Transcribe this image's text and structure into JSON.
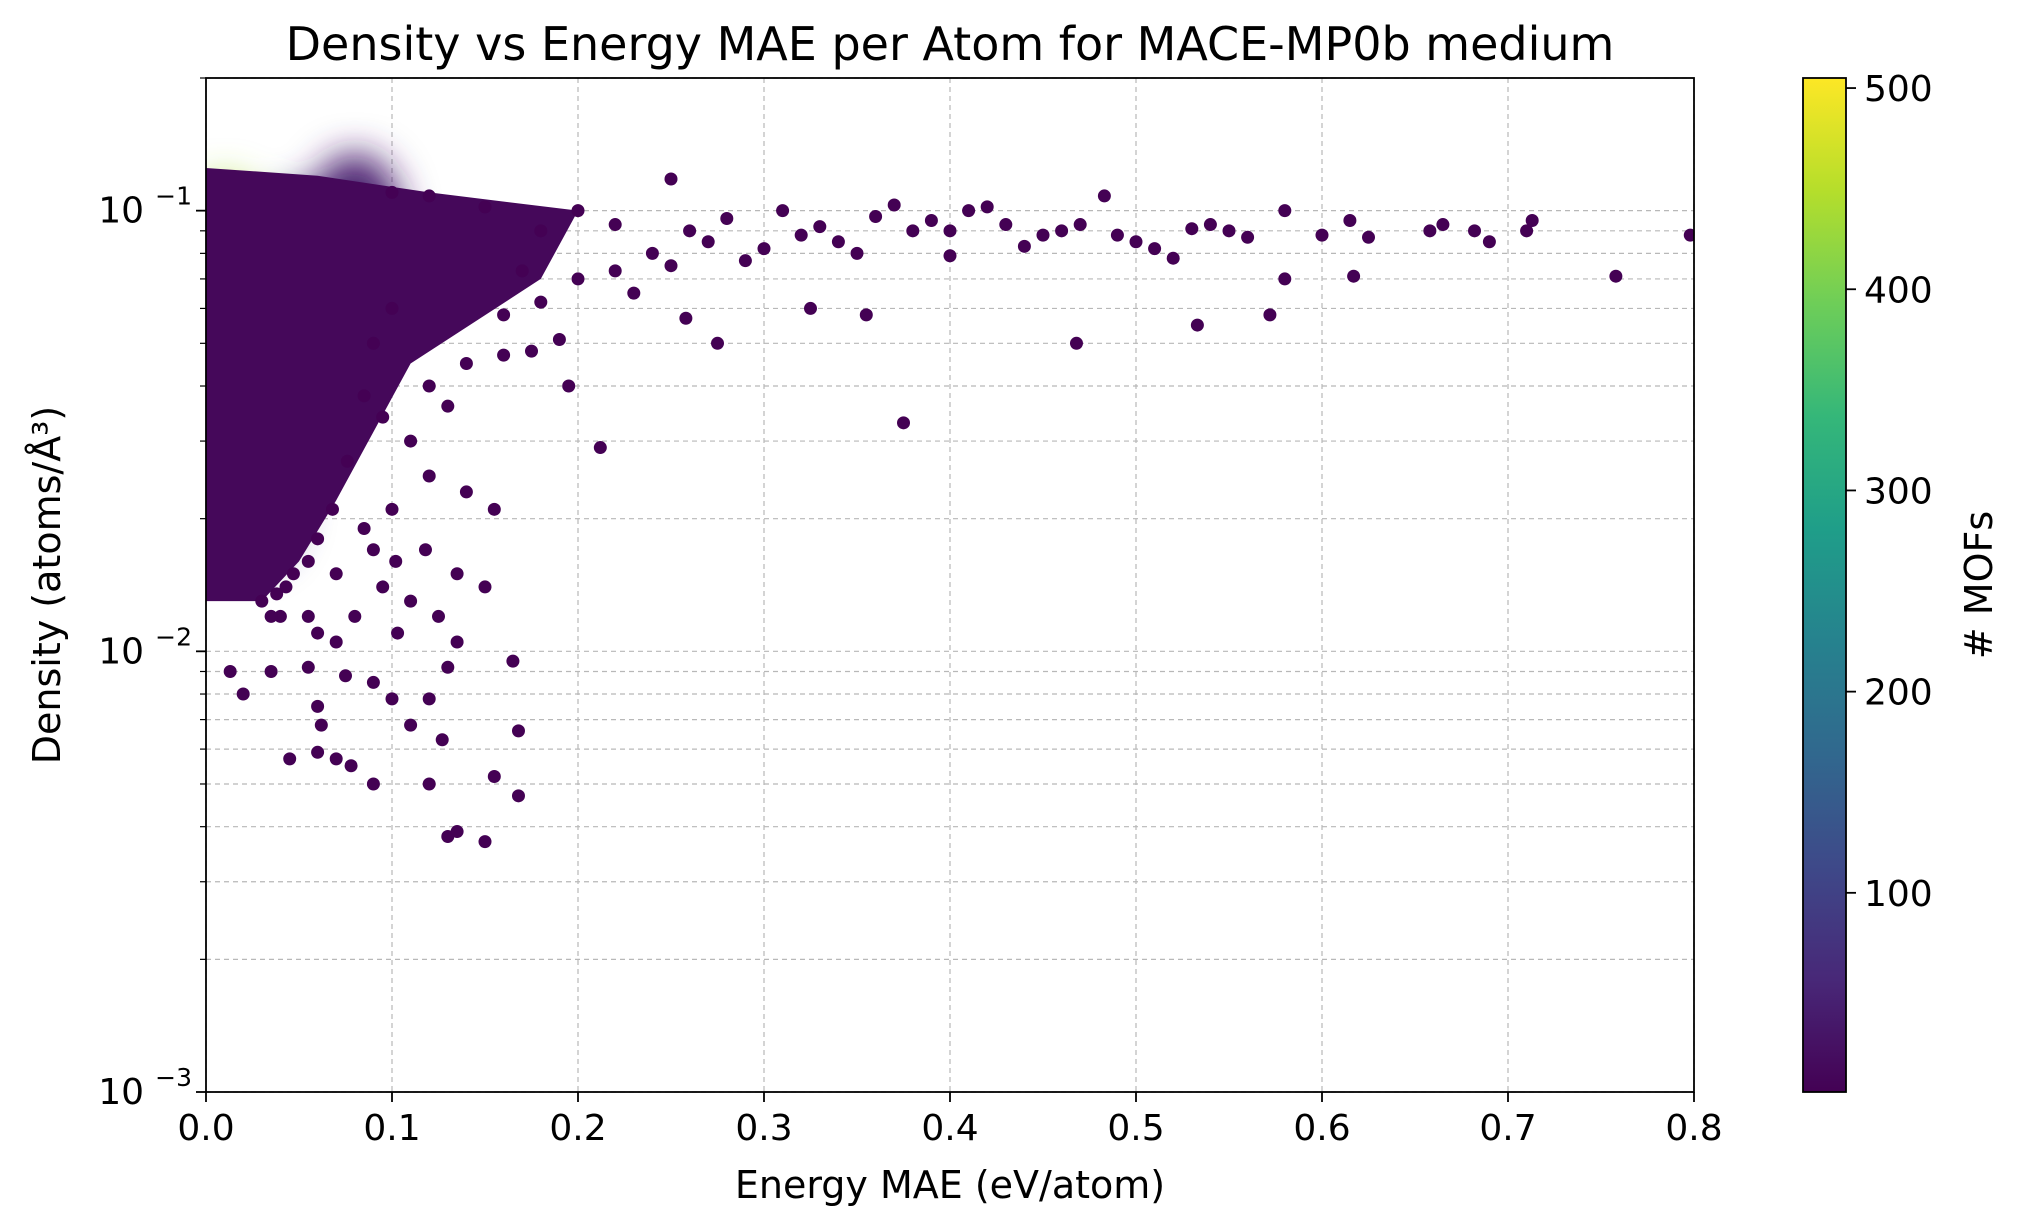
{
  "chart_data": {
    "type": "scatter",
    "title": "Density vs Energy MAE per Atom for MACE-MP0b medium",
    "xlabel": "Energy MAE (eV/atom)",
    "ylabel": "Density (atoms/Å³)",
    "xlim": [
      0.0,
      0.8
    ],
    "ylim": [
      0.001,
      0.2
    ],
    "yscale": "log",
    "grid": true,
    "colormap": "viridis",
    "colormap_stops": [
      "#440154",
      "#482878",
      "#3e4989",
      "#31688e",
      "#26828e",
      "#1f9e89",
      "#35b779",
      "#6ece58",
      "#b5de2b",
      "#fde725"
    ],
    "x_ticks": [
      "0.0",
      "0.1",
      "0.2",
      "0.3",
      "0.4",
      "0.5",
      "0.6",
      "0.7",
      "0.8"
    ],
    "x_tick_values": [
      0.0,
      0.1,
      0.2,
      0.3,
      0.4,
      0.5,
      0.6,
      0.7,
      0.8
    ],
    "y_ticks": [
      {
        "value": 0.001,
        "base": "10",
        "exp": "−3"
      },
      {
        "value": 0.01,
        "base": "10",
        "exp": "−2"
      },
      {
        "value": 0.1,
        "base": "10",
        "exp": "−1"
      }
    ],
    "colorbar": {
      "label": "# MOFs",
      "range": [
        1,
        505
      ],
      "ticks": [
        "100",
        "200",
        "300",
        "400",
        "500"
      ],
      "tick_values": [
        100,
        200,
        300,
        400,
        500
      ]
    },
    "core_density": [
      {
        "x": 0.015,
        "y": 0.092,
        "count": 505
      },
      {
        "x": 0.01,
        "y": 0.098,
        "count": 430
      },
      {
        "x": 0.025,
        "y": 0.088,
        "count": 380
      },
      {
        "x": 0.015,
        "y": 0.075,
        "count": 230
      },
      {
        "x": 0.02,
        "y": 0.06,
        "count": 130
      },
      {
        "x": 0.02,
        "y": 0.045,
        "count": 110
      },
      {
        "x": 0.025,
        "y": 0.032,
        "count": 100
      },
      {
        "x": 0.025,
        "y": 0.022,
        "count": 90
      },
      {
        "x": 0.05,
        "y": 0.08,
        "count": 70
      },
      {
        "x": 0.08,
        "y": 0.095,
        "count": 40
      },
      {
        "x": 0.04,
        "y": 0.04,
        "count": 60
      }
    ],
    "points": [
      [
        0.22,
        0.093
      ],
      [
        0.25,
        0.118
      ],
      [
        0.258,
        0.057
      ],
      [
        0.275,
        0.05
      ],
      [
        0.3,
        0.082
      ],
      [
        0.325,
        0.06
      ],
      [
        0.355,
        0.058
      ],
      [
        0.375,
        0.033
      ],
      [
        0.4,
        0.09
      ],
      [
        0.42,
        0.102
      ],
      [
        0.45,
        0.088
      ],
      [
        0.468,
        0.05
      ],
      [
        0.483,
        0.108
      ],
      [
        0.5,
        0.085
      ],
      [
        0.52,
        0.078
      ],
      [
        0.533,
        0.055
      ],
      [
        0.55,
        0.09
      ],
      [
        0.572,
        0.058
      ],
      [
        0.58,
        0.1
      ],
      [
        0.58,
        0.07
      ],
      [
        0.6,
        0.088
      ],
      [
        0.615,
        0.095
      ],
      [
        0.617,
        0.071
      ],
      [
        0.625,
        0.087
      ],
      [
        0.658,
        0.09
      ],
      [
        0.665,
        0.093
      ],
      [
        0.682,
        0.09
      ],
      [
        0.69,
        0.085
      ],
      [
        0.71,
        0.09
      ],
      [
        0.713,
        0.095
      ],
      [
        0.758,
        0.071
      ],
      [
        0.798,
        0.088
      ],
      [
        0.212,
        0.029
      ],
      [
        0.195,
        0.04
      ],
      [
        0.16,
        0.047
      ],
      [
        0.14,
        0.023
      ],
      [
        0.155,
        0.021
      ],
      [
        0.13,
        0.036
      ],
      [
        0.12,
        0.025
      ],
      [
        0.11,
        0.03
      ],
      [
        0.1,
        0.021
      ],
      [
        0.095,
        0.014
      ],
      [
        0.11,
        0.013
      ],
      [
        0.125,
        0.012
      ],
      [
        0.135,
        0.015
      ],
      [
        0.15,
        0.014
      ],
      [
        0.103,
        0.011
      ],
      [
        0.135,
        0.0105
      ],
      [
        0.165,
        0.0095
      ],
      [
        0.13,
        0.0092
      ],
      [
        0.12,
        0.0078
      ],
      [
        0.1,
        0.0078
      ],
      [
        0.09,
        0.0085
      ],
      [
        0.075,
        0.0088
      ],
      [
        0.06,
        0.0075
      ],
      [
        0.062,
        0.0068
      ],
      [
        0.06,
        0.0059
      ],
      [
        0.045,
        0.0057
      ],
      [
        0.07,
        0.0057
      ],
      [
        0.078,
        0.0055
      ],
      [
        0.09,
        0.005
      ],
      [
        0.12,
        0.005
      ],
      [
        0.155,
        0.0052
      ],
      [
        0.168,
        0.0047
      ],
      [
        0.13,
        0.0038
      ],
      [
        0.135,
        0.0039
      ],
      [
        0.15,
        0.0037
      ],
      [
        0.168,
        0.0066
      ],
      [
        0.127,
        0.0063
      ],
      [
        0.11,
        0.0068
      ],
      [
        0.035,
        0.009
      ],
      [
        0.02,
        0.008
      ],
      [
        0.013,
        0.009
      ],
      [
        0.055,
        0.0092
      ],
      [
        0.08,
        0.012
      ],
      [
        0.06,
        0.011
      ],
      [
        0.04,
        0.012
      ],
      [
        0.03,
        0.013
      ],
      [
        0.07,
        0.015
      ],
      [
        0.09,
        0.017
      ],
      [
        0.085,
        0.019
      ],
      [
        0.102,
        0.016
      ],
      [
        0.118,
        0.017
      ],
      [
        0.16,
        0.058
      ],
      [
        0.18,
        0.062
      ],
      [
        0.175,
        0.048
      ],
      [
        0.19,
        0.051
      ],
      [
        0.17,
        0.073
      ],
      [
        0.2,
        0.07
      ],
      [
        0.23,
        0.065
      ],
      [
        0.24,
        0.08
      ],
      [
        0.26,
        0.09
      ],
      [
        0.28,
        0.096
      ],
      [
        0.31,
        0.1
      ],
      [
        0.33,
        0.092
      ],
      [
        0.34,
        0.085
      ],
      [
        0.36,
        0.097
      ],
      [
        0.37,
        0.103
      ],
      [
        0.38,
        0.09
      ],
      [
        0.39,
        0.095
      ],
      [
        0.41,
        0.1
      ],
      [
        0.43,
        0.093
      ],
      [
        0.44,
        0.083
      ],
      [
        0.46,
        0.09
      ],
      [
        0.47,
        0.093
      ],
      [
        0.49,
        0.088
      ],
      [
        0.51,
        0.082
      ],
      [
        0.53,
        0.091
      ],
      [
        0.54,
        0.093
      ],
      [
        0.56,
        0.087
      ],
      [
        0.35,
        0.08
      ],
      [
        0.29,
        0.077
      ],
      [
        0.27,
        0.085
      ],
      [
        0.32,
        0.088
      ],
      [
        0.4,
        0.079
      ],
      [
        0.25,
        0.075
      ],
      [
        0.22,
        0.073
      ],
      [
        0.18,
        0.09
      ],
      [
        0.2,
        0.1
      ],
      [
        0.15,
        0.102
      ],
      [
        0.12,
        0.108
      ],
      [
        0.1,
        0.11
      ],
      [
        0.14,
        0.045
      ],
      [
        0.12,
        0.04
      ],
      [
        0.1,
        0.06
      ],
      [
        0.09,
        0.05
      ],
      [
        0.085,
        0.038
      ],
      [
        0.095,
        0.034
      ],
      [
        0.076,
        0.027
      ],
      [
        0.068,
        0.021
      ],
      [
        0.06,
        0.018
      ],
      [
        0.055,
        0.016
      ],
      [
        0.047,
        0.015
      ],
      [
        0.043,
        0.014
      ],
      [
        0.038,
        0.0135
      ],
      [
        0.035,
        0.012
      ],
      [
        0.07,
        0.0105
      ],
      [
        0.055,
        0.012
      ]
    ]
  }
}
